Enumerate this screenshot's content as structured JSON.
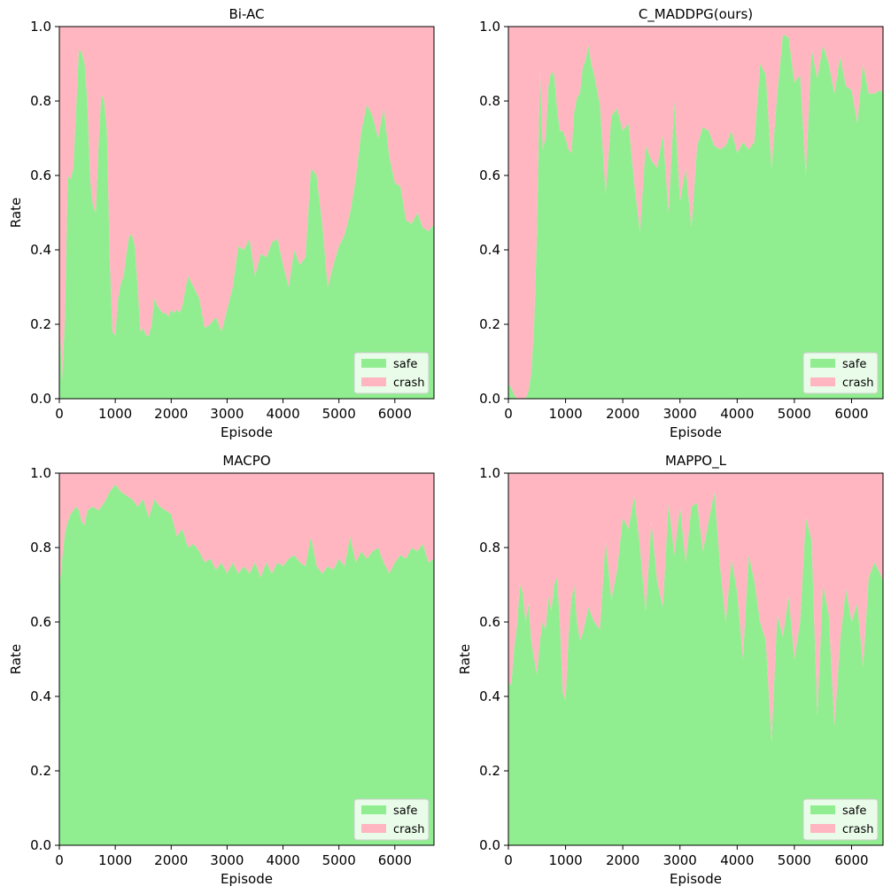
{
  "colors": {
    "safe": "#90EE90",
    "crash": "#FFB6C1",
    "axis": "#000000",
    "legend_bg": "#ffffff"
  },
  "chart_data": [
    {
      "type": "area",
      "stacked": true,
      "title": "Bi-AC",
      "xlabel": "Episode",
      "ylabel": "Rate",
      "xlim": [
        0,
        6700
      ],
      "ylim": [
        0,
        1.0
      ],
      "xticks": [
        "0",
        "1000",
        "2000",
        "3000",
        "4000",
        "5000",
        "6000"
      ],
      "yticks": [
        "0.0",
        "0.2",
        "0.4",
        "0.6",
        "0.8",
        "1.0"
      ],
      "legend": [
        "safe",
        "crash"
      ],
      "legend_position": "lower-right",
      "x": [
        0,
        50,
        100,
        150,
        200,
        250,
        300,
        350,
        400,
        450,
        500,
        550,
        600,
        650,
        700,
        750,
        800,
        850,
        900,
        950,
        1000,
        1050,
        1100,
        1150,
        1200,
        1250,
        1300,
        1350,
        1400,
        1450,
        1500,
        1550,
        1600,
        1650,
        1700,
        1750,
        1800,
        1850,
        1900,
        1950,
        2000,
        2050,
        2100,
        2150,
        2200,
        2300,
        2400,
        2500,
        2600,
        2700,
        2800,
        2900,
        3000,
        3100,
        3200,
        3300,
        3400,
        3500,
        3600,
        3700,
        3800,
        3900,
        4000,
        4100,
        4200,
        4300,
        4400,
        4500,
        4600,
        4700,
        4800,
        4900,
        5000,
        5100,
        5200,
        5300,
        5400,
        5500,
        5600,
        5700,
        5800,
        5900,
        6000,
        6100,
        6200,
        6300,
        6400,
        6500,
        6600,
        6700
      ],
      "series": [
        {
          "name": "safe",
          "values": [
            0.21,
            0.05,
            0.22,
            0.6,
            0.59,
            0.62,
            0.78,
            0.94,
            0.93,
            0.9,
            0.8,
            0.59,
            0.52,
            0.5,
            0.68,
            0.82,
            0.8,
            0.72,
            0.38,
            0.18,
            0.17,
            0.27,
            0.31,
            0.33,
            0.39,
            0.44,
            0.44,
            0.41,
            0.3,
            0.18,
            0.19,
            0.17,
            0.17,
            0.2,
            0.27,
            0.25,
            0.24,
            0.23,
            0.23,
            0.22,
            0.24,
            0.23,
            0.24,
            0.23,
            0.25,
            0.33,
            0.3,
            0.27,
            0.19,
            0.2,
            0.22,
            0.18,
            0.24,
            0.3,
            0.41,
            0.4,
            0.43,
            0.33,
            0.39,
            0.38,
            0.42,
            0.43,
            0.36,
            0.3,
            0.4,
            0.36,
            0.38,
            0.62,
            0.6,
            0.47,
            0.3,
            0.36,
            0.41,
            0.44,
            0.5,
            0.59,
            0.72,
            0.79,
            0.76,
            0.7,
            0.78,
            0.65,
            0.58,
            0.57,
            0.48,
            0.47,
            0.5,
            0.46,
            0.45,
            0.47
          ]
        },
        {
          "name": "crash",
          "values": [
            0.79,
            0.95,
            0.78,
            0.4,
            0.41,
            0.38,
            0.22,
            0.06,
            0.07,
            0.1,
            0.2,
            0.41,
            0.48,
            0.5,
            0.32,
            0.18,
            0.2,
            0.28,
            0.62,
            0.82,
            0.83,
            0.73,
            0.69,
            0.67,
            0.61,
            0.56,
            0.56,
            0.59,
            0.7,
            0.82,
            0.81,
            0.83,
            0.83,
            0.8,
            0.73,
            0.75,
            0.76,
            0.77,
            0.77,
            0.78,
            0.76,
            0.77,
            0.76,
            0.77,
            0.75,
            0.67,
            0.7,
            0.73,
            0.81,
            0.8,
            0.78,
            0.82,
            0.76,
            0.7,
            0.59,
            0.6,
            0.57,
            0.67,
            0.61,
            0.62,
            0.58,
            0.57,
            0.64,
            0.7,
            0.6,
            0.64,
            0.62,
            0.38,
            0.4,
            0.53,
            0.7,
            0.64,
            0.59,
            0.56,
            0.5,
            0.41,
            0.28,
            0.21,
            0.24,
            0.3,
            0.22,
            0.35,
            0.42,
            0.43,
            0.52,
            0.53,
            0.5,
            0.54,
            0.55,
            0.53
          ]
        }
      ]
    },
    {
      "type": "area",
      "stacked": true,
      "title": "C_MADDPG(ours)",
      "xlabel": "Episode",
      "ylabel": "",
      "xlim": [
        0,
        6550
      ],
      "ylim": [
        0,
        1.0
      ],
      "xticks": [
        "0",
        "1000",
        "2000",
        "3000",
        "4000",
        "5000",
        "6000"
      ],
      "yticks": [
        "0.0",
        "0.2",
        "0.4",
        "0.6",
        "0.8",
        "1.0"
      ],
      "legend": [
        "safe",
        "crash"
      ],
      "legend_position": "lower-right",
      "x": [
        0,
        50,
        100,
        150,
        200,
        250,
        300,
        350,
        400,
        450,
        500,
        550,
        600,
        650,
        700,
        750,
        800,
        850,
        900,
        950,
        1000,
        1050,
        1100,
        1150,
        1200,
        1250,
        1300,
        1350,
        1400,
        1450,
        1500,
        1600,
        1700,
        1800,
        1900,
        2000,
        2100,
        2200,
        2300,
        2400,
        2500,
        2600,
        2700,
        2800,
        2900,
        3000,
        3100,
        3200,
        3300,
        3400,
        3500,
        3600,
        3700,
        3800,
        3900,
        4000,
        4100,
        4200,
        4300,
        4400,
        4500,
        4600,
        4700,
        4800,
        4900,
        5000,
        5100,
        5200,
        5300,
        5400,
        5500,
        5600,
        5700,
        5800,
        5900,
        6000,
        6100,
        6200,
        6300,
        6400,
        6500,
        6550
      ],
      "series": [
        {
          "name": "safe",
          "values": [
            0.04,
            0.03,
            0.01,
            0.0,
            0.0,
            0.0,
            0.0,
            0.02,
            0.07,
            0.2,
            0.45,
            0.88,
            0.67,
            0.7,
            0.84,
            0.88,
            0.87,
            0.78,
            0.72,
            0.72,
            0.7,
            0.67,
            0.66,
            0.77,
            0.81,
            0.82,
            0.89,
            0.91,
            0.95,
            0.9,
            0.87,
            0.79,
            0.55,
            0.76,
            0.78,
            0.72,
            0.74,
            0.58,
            0.45,
            0.68,
            0.64,
            0.62,
            0.71,
            0.5,
            0.8,
            0.53,
            0.62,
            0.46,
            0.68,
            0.73,
            0.72,
            0.68,
            0.67,
            0.68,
            0.72,
            0.66,
            0.69,
            0.67,
            0.69,
            0.9,
            0.87,
            0.62,
            0.82,
            0.98,
            0.97,
            0.85,
            0.87,
            0.6,
            0.94,
            0.86,
            0.95,
            0.9,
            0.82,
            0.92,
            0.84,
            0.83,
            0.74,
            0.9,
            0.82,
            0.82,
            0.83,
            0.82
          ]
        },
        {
          "name": "crash",
          "values": [
            0.96,
            0.97,
            0.99,
            1.0,
            1.0,
            1.0,
            1.0,
            0.98,
            0.93,
            0.8,
            0.55,
            0.12,
            0.33,
            0.3,
            0.16,
            0.12,
            0.13,
            0.22,
            0.28,
            0.28,
            0.3,
            0.33,
            0.34,
            0.23,
            0.19,
            0.18,
            0.11,
            0.09,
            0.05,
            0.1,
            0.13,
            0.21,
            0.45,
            0.24,
            0.22,
            0.28,
            0.26,
            0.42,
            0.55,
            0.32,
            0.36,
            0.38,
            0.29,
            0.5,
            0.2,
            0.47,
            0.38,
            0.54,
            0.32,
            0.27,
            0.28,
            0.32,
            0.33,
            0.32,
            0.28,
            0.34,
            0.31,
            0.33,
            0.31,
            0.1,
            0.13,
            0.38,
            0.18,
            0.02,
            0.03,
            0.15,
            0.13,
            0.4,
            0.06,
            0.14,
            0.05,
            0.1,
            0.18,
            0.08,
            0.16,
            0.17,
            0.26,
            0.1,
            0.18,
            0.18,
            0.17,
            0.18
          ]
        }
      ]
    },
    {
      "type": "area",
      "stacked": true,
      "title": "MACPO",
      "xlabel": "Episode",
      "ylabel": "Rate",
      "xlim": [
        0,
        6700
      ],
      "ylim": [
        0,
        1.0
      ],
      "xticks": [
        "0",
        "1000",
        "2000",
        "3000",
        "4000",
        "5000",
        "6000"
      ],
      "yticks": [
        "0.0",
        "0.2",
        "0.4",
        "0.6",
        "0.8",
        "1.0"
      ],
      "legend": [
        "safe",
        "crash"
      ],
      "legend_position": "lower-right",
      "x": [
        0,
        50,
        100,
        150,
        200,
        250,
        300,
        350,
        400,
        450,
        500,
        600,
        700,
        800,
        900,
        1000,
        1100,
        1200,
        1300,
        1400,
        1500,
        1600,
        1700,
        1800,
        1900,
        2000,
        2100,
        2200,
        2300,
        2400,
        2500,
        2600,
        2700,
        2800,
        2900,
        3000,
        3100,
        3200,
        3300,
        3400,
        3500,
        3600,
        3700,
        3800,
        3900,
        4000,
        4100,
        4200,
        4300,
        4400,
        4500,
        4600,
        4700,
        4800,
        4900,
        5000,
        5100,
        5200,
        5300,
        5400,
        5500,
        5600,
        5700,
        5800,
        5900,
        6000,
        6100,
        6200,
        6300,
        6400,
        6500,
        6600,
        6700
      ],
      "series": [
        {
          "name": "safe",
          "values": [
            0.69,
            0.77,
            0.84,
            0.87,
            0.89,
            0.9,
            0.91,
            0.9,
            0.87,
            0.86,
            0.9,
            0.91,
            0.9,
            0.92,
            0.95,
            0.97,
            0.95,
            0.94,
            0.93,
            0.91,
            0.93,
            0.88,
            0.93,
            0.91,
            0.9,
            0.89,
            0.83,
            0.85,
            0.8,
            0.81,
            0.79,
            0.76,
            0.77,
            0.74,
            0.76,
            0.73,
            0.76,
            0.73,
            0.75,
            0.73,
            0.76,
            0.72,
            0.76,
            0.73,
            0.76,
            0.75,
            0.77,
            0.78,
            0.76,
            0.75,
            0.83,
            0.75,
            0.73,
            0.75,
            0.74,
            0.77,
            0.75,
            0.83,
            0.76,
            0.79,
            0.77,
            0.79,
            0.8,
            0.76,
            0.73,
            0.76,
            0.78,
            0.77,
            0.8,
            0.79,
            0.81,
            0.76,
            0.77
          ]
        },
        {
          "name": "crash",
          "values": [
            0.31,
            0.23,
            0.16,
            0.13,
            0.11,
            0.1,
            0.09,
            0.1,
            0.13,
            0.14,
            0.1,
            0.09,
            0.1,
            0.08,
            0.05,
            0.03,
            0.05,
            0.06,
            0.07,
            0.09,
            0.07,
            0.12,
            0.07,
            0.09,
            0.1,
            0.11,
            0.17,
            0.15,
            0.2,
            0.19,
            0.21,
            0.24,
            0.23,
            0.26,
            0.24,
            0.27,
            0.24,
            0.27,
            0.25,
            0.27,
            0.24,
            0.28,
            0.24,
            0.27,
            0.24,
            0.25,
            0.23,
            0.22,
            0.24,
            0.25,
            0.17,
            0.25,
            0.27,
            0.25,
            0.26,
            0.23,
            0.25,
            0.17,
            0.24,
            0.21,
            0.23,
            0.21,
            0.2,
            0.24,
            0.27,
            0.24,
            0.22,
            0.23,
            0.2,
            0.21,
            0.19,
            0.24,
            0.23
          ]
        }
      ]
    },
    {
      "type": "area",
      "stacked": true,
      "title": "MAPPO_L",
      "xlabel": "Episode",
      "ylabel": "Rate",
      "xlim": [
        0,
        6550
      ],
      "ylim": [
        0,
        1.0
      ],
      "xticks": [
        "0",
        "1000",
        "2000",
        "3000",
        "4000",
        "5000",
        "6000"
      ],
      "yticks": [
        "0.0",
        "0.2",
        "0.4",
        "0.6",
        "0.8",
        "1.0"
      ],
      "legend": [
        "safe",
        "crash"
      ],
      "legend_position": "lower-right",
      "x": [
        0,
        50,
        100,
        150,
        200,
        250,
        300,
        350,
        400,
        450,
        500,
        550,
        600,
        650,
        700,
        750,
        800,
        850,
        900,
        950,
        1000,
        1050,
        1100,
        1150,
        1200,
        1250,
        1300,
        1400,
        1500,
        1600,
        1700,
        1800,
        1900,
        2000,
        2100,
        2200,
        2300,
        2400,
        2500,
        2600,
        2700,
        2800,
        2900,
        3000,
        3100,
        3200,
        3300,
        3400,
        3500,
        3600,
        3700,
        3800,
        3900,
        4000,
        4100,
        4200,
        4300,
        4400,
        4500,
        4600,
        4700,
        4800,
        4900,
        5000,
        5100,
        5200,
        5300,
        5400,
        5500,
        5600,
        5700,
        5800,
        5900,
        6000,
        6100,
        6200,
        6300,
        6400,
        6500,
        6550
      ],
      "series": [
        {
          "name": "safe",
          "values": [
            0.44,
            0.43,
            0.53,
            0.59,
            0.7,
            0.68,
            0.6,
            0.65,
            0.55,
            0.5,
            0.46,
            0.55,
            0.6,
            0.58,
            0.67,
            0.63,
            0.7,
            0.72,
            0.6,
            0.41,
            0.39,
            0.56,
            0.66,
            0.7,
            0.6,
            0.55,
            0.57,
            0.64,
            0.6,
            0.58,
            0.82,
            0.66,
            0.74,
            0.88,
            0.85,
            0.94,
            0.8,
            0.63,
            0.87,
            0.71,
            0.64,
            0.92,
            0.78,
            0.91,
            0.76,
            0.91,
            0.92,
            0.79,
            0.87,
            0.95,
            0.75,
            0.6,
            0.77,
            0.68,
            0.5,
            0.78,
            0.71,
            0.6,
            0.55,
            0.28,
            0.62,
            0.56,
            0.67,
            0.5,
            0.6,
            0.88,
            0.82,
            0.35,
            0.7,
            0.62,
            0.32,
            0.55,
            0.69,
            0.6,
            0.65,
            0.48,
            0.72,
            0.76,
            0.73,
            0.71
          ]
        },
        {
          "name": "crash",
          "values": [
            0.56,
            0.57,
            0.47,
            0.41,
            0.3,
            0.32,
            0.4,
            0.35,
            0.45,
            0.5,
            0.54,
            0.45,
            0.4,
            0.42,
            0.33,
            0.37,
            0.3,
            0.28,
            0.4,
            0.59,
            0.61,
            0.44,
            0.34,
            0.3,
            0.4,
            0.45,
            0.43,
            0.36,
            0.4,
            0.42,
            0.18,
            0.34,
            0.26,
            0.12,
            0.15,
            0.06,
            0.2,
            0.37,
            0.13,
            0.29,
            0.36,
            0.08,
            0.22,
            0.09,
            0.24,
            0.09,
            0.08,
            0.21,
            0.13,
            0.05,
            0.25,
            0.4,
            0.23,
            0.32,
            0.5,
            0.22,
            0.29,
            0.4,
            0.45,
            0.72,
            0.38,
            0.44,
            0.33,
            0.5,
            0.4,
            0.12,
            0.18,
            0.65,
            0.3,
            0.38,
            0.68,
            0.45,
            0.31,
            0.4,
            0.35,
            0.52,
            0.28,
            0.24,
            0.27,
            0.29
          ]
        }
      ]
    }
  ]
}
